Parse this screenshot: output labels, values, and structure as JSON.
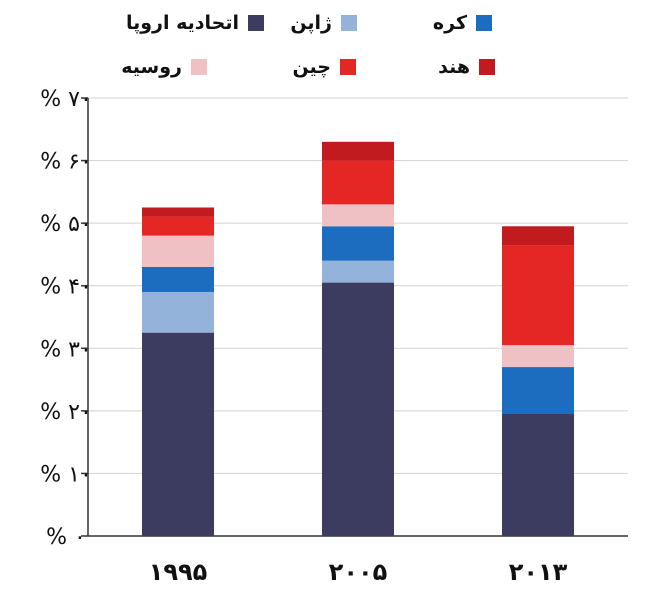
{
  "chart_data": {
    "type": "bar",
    "stacked": true,
    "categories": [
      "۱۹۹۵",
      "۲۰۰۵",
      "۲۰۱۳"
    ],
    "series": [
      {
        "name": "اتحادیه اروپا",
        "color": "#3b3c60",
        "values": [
          32.5,
          40.5,
          19.5
        ]
      },
      {
        "name": "ژاپن",
        "color": "#93b3db",
        "values": [
          6.5,
          3.5,
          0
        ]
      },
      {
        "name": "کره",
        "color": "#1c6cbf",
        "values": [
          4,
          5.5,
          7.5
        ]
      },
      {
        "name": "روسیه",
        "color": "#efc0c4",
        "values": [
          5,
          3.5,
          3.5
        ]
      },
      {
        "name": "چین",
        "color": "#e42625",
        "values": [
          3,
          7,
          16
        ]
      },
      {
        "name": "هند",
        "color": "#c11b20",
        "values": [
          1.5,
          3,
          3
        ]
      }
    ],
    "ylim": [
      0,
      70
    ],
    "yticks": [
      0,
      10,
      20,
      30,
      40,
      50,
      60,
      70
    ],
    "ytick_labels": [
      "% ۰",
      "% ۱۰",
      "% ۲۰",
      "% ۳۰",
      "% ۴۰",
      "% ۵۰",
      "% ۶۰",
      "% ۷۰"
    ],
    "grid": true,
    "legend_position": "top"
  }
}
